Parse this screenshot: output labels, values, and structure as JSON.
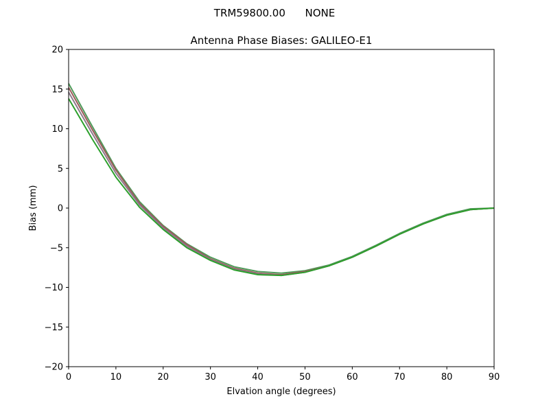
{
  "suptitle": "TRM59800.00      NONE",
  "chart_data": {
    "type": "line",
    "title": "Antenna Phase Biases: GALILEO-E1",
    "xlabel": "Elvation angle (degrees)",
    "ylabel": "Bias (mm)",
    "xlim": [
      0,
      90
    ],
    "ylim": [
      -20,
      20
    ],
    "xticks": [
      "0",
      "10",
      "20",
      "30",
      "40",
      "50",
      "60",
      "70",
      "80",
      "90"
    ],
    "yticks": [
      "20",
      "15",
      "10",
      "5",
      "0",
      "−5",
      "−10",
      "−15",
      "−20"
    ],
    "grid": false,
    "x": [
      0,
      5,
      10,
      15,
      20,
      25,
      30,
      35,
      40,
      45,
      50,
      55,
      60,
      65,
      70,
      75,
      80,
      85,
      90
    ],
    "series": [
      {
        "color": "#4f9a5a",
        "values": [
          15.7,
          10.3,
          5.0,
          0.8,
          -2.2,
          -4.5,
          -6.2,
          -7.4,
          -8.0,
          -8.2,
          -7.9,
          -7.2,
          -6.1,
          -4.7,
          -3.2,
          -1.9,
          -0.8,
          -0.1,
          0.0
        ]
      },
      {
        "color": "#9c5a5a",
        "values": [
          15.2,
          9.9,
          4.8,
          0.6,
          -2.3,
          -4.6,
          -6.4,
          -7.6,
          -8.2,
          -8.4,
          -8.0,
          -7.3,
          -6.2,
          -4.8,
          -3.3,
          -2.0,
          -0.9,
          -0.2,
          0.0
        ]
      },
      {
        "color": "#8c7a8c",
        "values": [
          14.6,
          9.4,
          4.4,
          0.4,
          -2.5,
          -4.8,
          -6.5,
          -7.7,
          -8.3,
          -8.5,
          -8.1,
          -7.3,
          -6.2,
          -4.8,
          -3.3,
          -2.0,
          -0.9,
          -0.2,
          0.0
        ]
      },
      {
        "color": "#2ca02c",
        "values": [
          13.8,
          8.7,
          3.9,
          0.1,
          -2.7,
          -5.0,
          -6.6,
          -7.8,
          -8.4,
          -8.5,
          -8.1,
          -7.3,
          -6.2,
          -4.8,
          -3.3,
          -2.0,
          -0.9,
          -0.2,
          0.0
        ]
      }
    ]
  }
}
